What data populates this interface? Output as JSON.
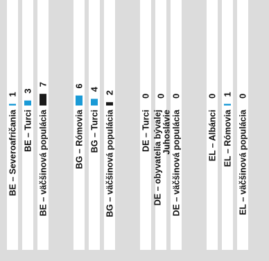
{
  "chart_data": {
    "type": "bar",
    "orientation": "horizontal-rotated",
    "groups": [
      {
        "items": [
          {
            "category": "BE – Severoafričania",
            "value": 1,
            "color": "#1a9ad6"
          },
          {
            "category": "BE – Turci",
            "value": 3,
            "color": "#1a9ad6"
          },
          {
            "category": "BE – väčšinová populácia",
            "value": 7,
            "color": "#1a1a1a"
          }
        ]
      },
      {
        "items": [
          {
            "category": "BG – Rómovia",
            "value": 6,
            "color": "#1a9ad6"
          },
          {
            "category": "BG – Turci",
            "value": 4,
            "color": "#1a9ad6"
          },
          {
            "category": "BG – väčšinová populácia",
            "value": 2,
            "color": "#1a1a1a"
          }
        ]
      },
      {
        "items": [
          {
            "category": "DE – Turci",
            "value": 0,
            "color": "#1a9ad6"
          },
          {
            "category": "DE – obyvatelia bývalej Juhoslávie",
            "value": 0,
            "color": "#1a9ad6"
          },
          {
            "category": "DE – väčšinová populácia",
            "value": 0,
            "color": "#1a1a1a"
          }
        ]
      },
      {
        "items": [
          {
            "category": "EL – Albánci",
            "value": 0,
            "color": "#1a9ad6"
          },
          {
            "category": "EL – Rómovia",
            "value": 1,
            "color": "#1a9ad6"
          },
          {
            "category": "EL – väčšinová populácia",
            "value": 0,
            "color": "#1a1a1a"
          }
        ]
      }
    ],
    "title": "",
    "xlabel": "",
    "ylabel": "",
    "grid": false,
    "colors": {
      "background": "#dcdcdc",
      "band_white": "#ffffff",
      "minority": "#1a9ad6",
      "majority": "#1a1a1a"
    }
  }
}
